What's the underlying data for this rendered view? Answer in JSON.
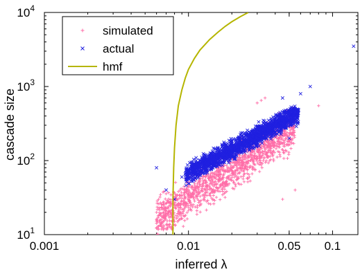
{
  "chart_data": {
    "type": "scatter",
    "title": "",
    "xlabel": "inferred λ",
    "ylabel": "cascade size",
    "xscale": "log",
    "yscale": "log",
    "xlim": [
      0.001,
      0.15
    ],
    "ylim": [
      10,
      10000
    ],
    "x_ticks": [
      {
        "value": 0.001,
        "label": "0.001"
      },
      {
        "value": 0.01,
        "label": "0.01"
      },
      {
        "value": 0.05,
        "label": "0.05"
      },
      {
        "value": 0.1,
        "label": "0.1"
      }
    ],
    "y_ticks": [
      {
        "value": 10,
        "base": "10",
        "exp": "1"
      },
      {
        "value": 100,
        "base": "10",
        "exp": "2"
      },
      {
        "value": 1000,
        "base": "10",
        "exp": "3"
      },
      {
        "value": 10000,
        "base": "10",
        "exp": "4"
      }
    ],
    "grid": false,
    "legend_position": "top-left",
    "series": [
      {
        "name": "simulated",
        "marker": "+",
        "color": "#ff6ea8",
        "description_points_approx": "dense band from (0.007,15) to (0.05,300); outliers near (0.03,600), (0.08,550)",
        "points": [
          [
            0.006,
            20
          ],
          [
            0.0065,
            14
          ],
          [
            0.007,
            18
          ],
          [
            0.0075,
            25
          ],
          [
            0.008,
            30
          ],
          [
            0.009,
            22
          ],
          [
            0.01,
            35
          ],
          [
            0.011,
            40
          ],
          [
            0.012,
            28
          ],
          [
            0.013,
            50
          ],
          [
            0.014,
            45
          ],
          [
            0.015,
            60
          ],
          [
            0.016,
            55
          ],
          [
            0.018,
            70
          ],
          [
            0.02,
            80
          ],
          [
            0.022,
            95
          ],
          [
            0.025,
            110
          ],
          [
            0.028,
            130
          ],
          [
            0.03,
            150
          ],
          [
            0.033,
            170
          ],
          [
            0.036,
            190
          ],
          [
            0.04,
            220
          ],
          [
            0.044,
            250
          ],
          [
            0.048,
            280
          ],
          [
            0.052,
            300
          ],
          [
            0.03,
            600
          ],
          [
            0.032,
            650
          ],
          [
            0.034,
            700
          ],
          [
            0.08,
            550
          ],
          [
            0.055,
            40
          ],
          [
            0.045,
            30
          ]
        ]
      },
      {
        "name": "actual",
        "marker": "x",
        "color": "#2020e0",
        "description_points_approx": "dense band from (0.01,60) to (0.05,450); extends to (0.14,3500)",
        "points": [
          [
            0.006,
            80
          ],
          [
            0.007,
            40
          ],
          [
            0.008,
            30
          ],
          [
            0.009,
            60
          ],
          [
            0.01,
            70
          ],
          [
            0.011,
            90
          ],
          [
            0.012,
            100
          ],
          [
            0.013,
            110
          ],
          [
            0.014,
            120
          ],
          [
            0.015,
            130
          ],
          [
            0.016,
            150
          ],
          [
            0.018,
            160
          ],
          [
            0.02,
            180
          ],
          [
            0.022,
            200
          ],
          [
            0.025,
            230
          ],
          [
            0.028,
            260
          ],
          [
            0.03,
            290
          ],
          [
            0.033,
            320
          ],
          [
            0.036,
            350
          ],
          [
            0.04,
            380
          ],
          [
            0.044,
            420
          ],
          [
            0.048,
            450
          ],
          [
            0.052,
            500
          ],
          [
            0.06,
            800
          ],
          [
            0.07,
            1000
          ],
          [
            0.05,
            200
          ],
          [
            0.045,
            700
          ],
          [
            0.14,
            3500
          ]
        ]
      },
      {
        "name": "hmf",
        "type": "line",
        "color": "#b5b500",
        "points": [
          [
            0.0078,
            10
          ],
          [
            0.0078,
            30
          ],
          [
            0.0079,
            80
          ],
          [
            0.008,
            150
          ],
          [
            0.0082,
            300
          ],
          [
            0.0085,
            550
          ],
          [
            0.009,
            900
          ],
          [
            0.0095,
            1300
          ],
          [
            0.01,
            1700
          ],
          [
            0.011,
            2400
          ],
          [
            0.012,
            3100
          ],
          [
            0.014,
            4300
          ],
          [
            0.016,
            5400
          ],
          [
            0.018,
            6500
          ],
          [
            0.02,
            7500
          ],
          [
            0.023,
            8800
          ],
          [
            0.026,
            10000
          ]
        ]
      }
    ]
  }
}
